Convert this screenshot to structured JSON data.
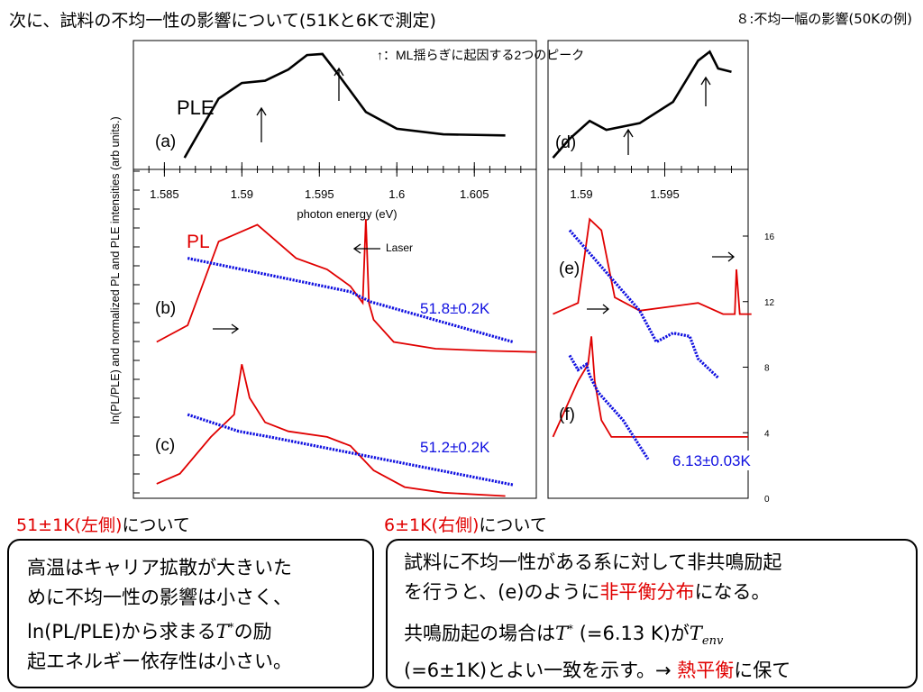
{
  "title": "次に、試料の不均一性の影響について(51Kと6Kで測定)",
  "slide_label": "８:不均一幅の影響(50Kの例)",
  "chart_data": {
    "type": "line",
    "ylabel": "ln(PL/PLE) and normalized PL and PLE intensities (arb units.)",
    "annotation_peaks": "↑：ML揺らぎに起因する2つのピーク",
    "left": {
      "xlabel": "photon energy (eV)",
      "xlim": [
        1.583,
        1.609
      ],
      "x_ticks": [
        "1.585",
        "1.59",
        "1.595",
        "1.6",
        "1.605"
      ],
      "panels": {
        "a": "(a)",
        "b": "(b)",
        "c": "(c)",
        "ple": "PLE",
        "pl": "PL",
        "laser": "Laser",
        "temp_b": "51.8±0.2K",
        "temp_c": "51.2±0.2K"
      },
      "series": [
        {
          "name": "PLE",
          "x": [
            1.5863,
            1.587,
            1.5885,
            1.59,
            1.5915,
            1.593,
            1.5942,
            1.5952,
            1.5962,
            1.598,
            1.6,
            1.603,
            1.607
          ],
          "y": [
            0.05,
            0.22,
            0.58,
            0.72,
            0.74,
            0.84,
            0.97,
            0.98,
            0.8,
            0.46,
            0.31,
            0.26,
            0.25
          ]
        },
        {
          "name": "PL (b)",
          "x": [
            1.5845,
            1.5865,
            1.5885,
            1.591,
            1.5935,
            1.5955,
            1.597,
            1.5978,
            1.598,
            1.5982,
            1.5985,
            1.5998,
            1.6025,
            1.606,
            1.609
          ],
          "y": [
            -1.6,
            -1.45,
            -0.7,
            -0.55,
            -0.85,
            -0.95,
            -1.1,
            -1.25,
            -0.5,
            -1.25,
            -1.4,
            -1.6,
            -1.66,
            -1.68,
            -1.69
          ]
        },
        {
          "name": "ln(PL/PLE) (b)",
          "x": [
            1.5865,
            1.597,
            1.5983,
            1.6075
          ],
          "y": [
            -0.85,
            -1.15,
            -1.24,
            -1.6
          ]
        },
        {
          "name": "PL (c)",
          "x": [
            1.5845,
            1.586,
            1.588,
            1.5895,
            1.59,
            1.5905,
            1.5915,
            1.593,
            1.5955,
            1.597,
            1.5985,
            1.6005,
            1.603,
            1.607
          ],
          "y": [
            -2.87,
            -2.78,
            -2.45,
            -2.25,
            -1.8,
            -2.1,
            -2.32,
            -2.4,
            -2.45,
            -2.53,
            -2.75,
            -2.9,
            -2.95,
            -2.98
          ]
        },
        {
          "name": "ln(PL/PLE) (c)",
          "x": [
            1.5865,
            1.5898,
            1.5918,
            1.6075
          ],
          "y": [
            -2.25,
            -2.4,
            -2.45,
            -2.88
          ]
        }
      ]
    },
    "right": {
      "xlim": [
        1.588,
        1.6
      ],
      "x_ticks": [
        "1.59",
        "1.595"
      ],
      "y2_ticks": [
        0,
        4,
        8,
        12,
        16
      ],
      "panels": {
        "d": "(d)",
        "e": "(e)",
        "f": "(f)",
        "temp_f": "6.13±0.03K"
      },
      "series": [
        {
          "name": "PLE (d)",
          "x": [
            1.5883,
            1.5893,
            1.5905,
            1.5915,
            1.5935,
            1.5955,
            1.597,
            1.5977,
            1.5982,
            1.599
          ],
          "y": [
            0.05,
            0.22,
            0.38,
            0.3,
            0.36,
            0.55,
            0.92,
            1.0,
            0.85,
            0.82
          ]
        },
        {
          "name": "PL (e)",
          "x": [
            1.5883,
            1.5898,
            1.5905,
            1.5912,
            1.592,
            1.5935,
            1.597,
            1.5985,
            1.5992,
            1.5993,
            1.5995,
            1.6002
          ],
          "y": [
            -1.35,
            -1.25,
            -0.5,
            -0.6,
            -1.2,
            -1.32,
            -1.25,
            -1.35,
            -1.35,
            -0.95,
            -1.35,
            -1.35
          ]
        },
        {
          "name": "ln(PL/PLE) (e)",
          "x": [
            1.5893,
            1.5935,
            1.5945,
            1.5955,
            1.5965,
            1.597,
            1.5982
          ],
          "y": [
            -0.6,
            -1.32,
            -1.6,
            -1.52,
            -1.55,
            -1.75,
            -1.92
          ]
        },
        {
          "name": "PL (f)",
          "x": [
            1.5883,
            1.5898,
            1.5904,
            1.5906,
            1.5908,
            1.5912,
            1.5918,
            1.5935,
            1.6
          ],
          "y": [
            -2.45,
            -1.95,
            -1.8,
            -1.55,
            -1.95,
            -2.3,
            -2.45,
            -2.45,
            -2.45
          ]
        },
        {
          "name": "ln(PL/PLE) (f)",
          "x": [
            1.5893,
            1.5898,
            1.5903,
            1.5905,
            1.591,
            1.5925,
            1.594
          ],
          "y": [
            -1.72,
            -1.85,
            -1.8,
            -1.9,
            -2.05,
            -2.3,
            -2.65
          ]
        }
      ]
    }
  },
  "captions": {
    "left_head_red": "51±1K(左側)",
    "left_head_black": "について",
    "right_head_red": "6±1K(右側)",
    "right_head_black": "について"
  },
  "box_left": {
    "line1": "高温はキャリア拡散が大きいた",
    "line2": "めに不均一性の影響は小さく、",
    "line3a": "ln(PL/PLE)から求まる",
    "t_symbol": "T",
    "t_sup": "*",
    "line3b": "の励",
    "line4": "起エネルギー依存性は小さい。"
  },
  "box_right": {
    "p1a": "試料に不均一性がある系に対して非共鳴励起",
    "p1b": "を行うと、(e)のように",
    "p1red": "非平衡分布",
    "p1c": "になる。",
    "p2a": "共鳴励起の場合は",
    "t_symbol": "T",
    "t_sup": "*",
    "p2b": " (=6.13 K)が",
    "tenv_symbol": "T",
    "tenv_sub": "env",
    "p3a": "(=6±1K)とよい一致を示す。→ ",
    "p3red": "熱平衡",
    "p3b": "に保て"
  }
}
